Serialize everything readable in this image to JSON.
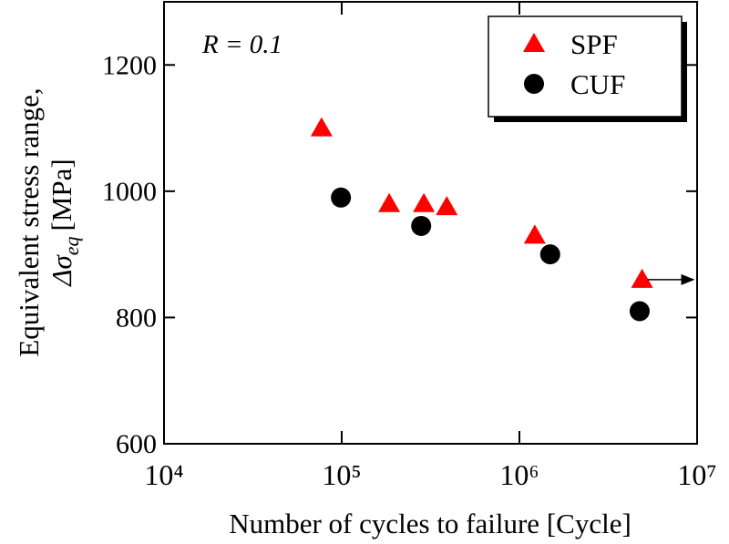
{
  "chart_data": {
    "type": "scatter",
    "x_label": "Number of cycles to failure [Cycle]",
    "y_label": {
      "line1": "Equivalent stress range,",
      "symbol": "Δσ",
      "subscript": "eq",
      "unit": "[MPa]"
    },
    "annotation": "R = 0.1",
    "log_x": true,
    "xlim": [
      10000,
      10000000
    ],
    "xticks": [
      {
        "value": 10000,
        "label": "10⁴"
      },
      {
        "value": 100000,
        "label": "10⁵"
      },
      {
        "value": 1000000,
        "label": "10⁶"
      },
      {
        "value": 10000000,
        "label": "10⁷"
      }
    ],
    "ylim": [
      600,
      1300
    ],
    "yticks": [
      600,
      800,
      1000,
      1200
    ],
    "legend": "top-right",
    "series": [
      {
        "name": "SPF",
        "color": "#ff0000",
        "marker": "triangle",
        "x": [
          77000,
          185000,
          290000,
          390000,
          1220000,
          4900000
        ],
        "values": [
          1100,
          980,
          980,
          975,
          930,
          860
        ]
      },
      {
        "name": "CUF",
        "color": "#000000",
        "marker": "circle",
        "x": [
          99000,
          280000,
          1490000,
          4750000
        ],
        "values": [
          990,
          945,
          900,
          810
        ]
      }
    ]
  }
}
